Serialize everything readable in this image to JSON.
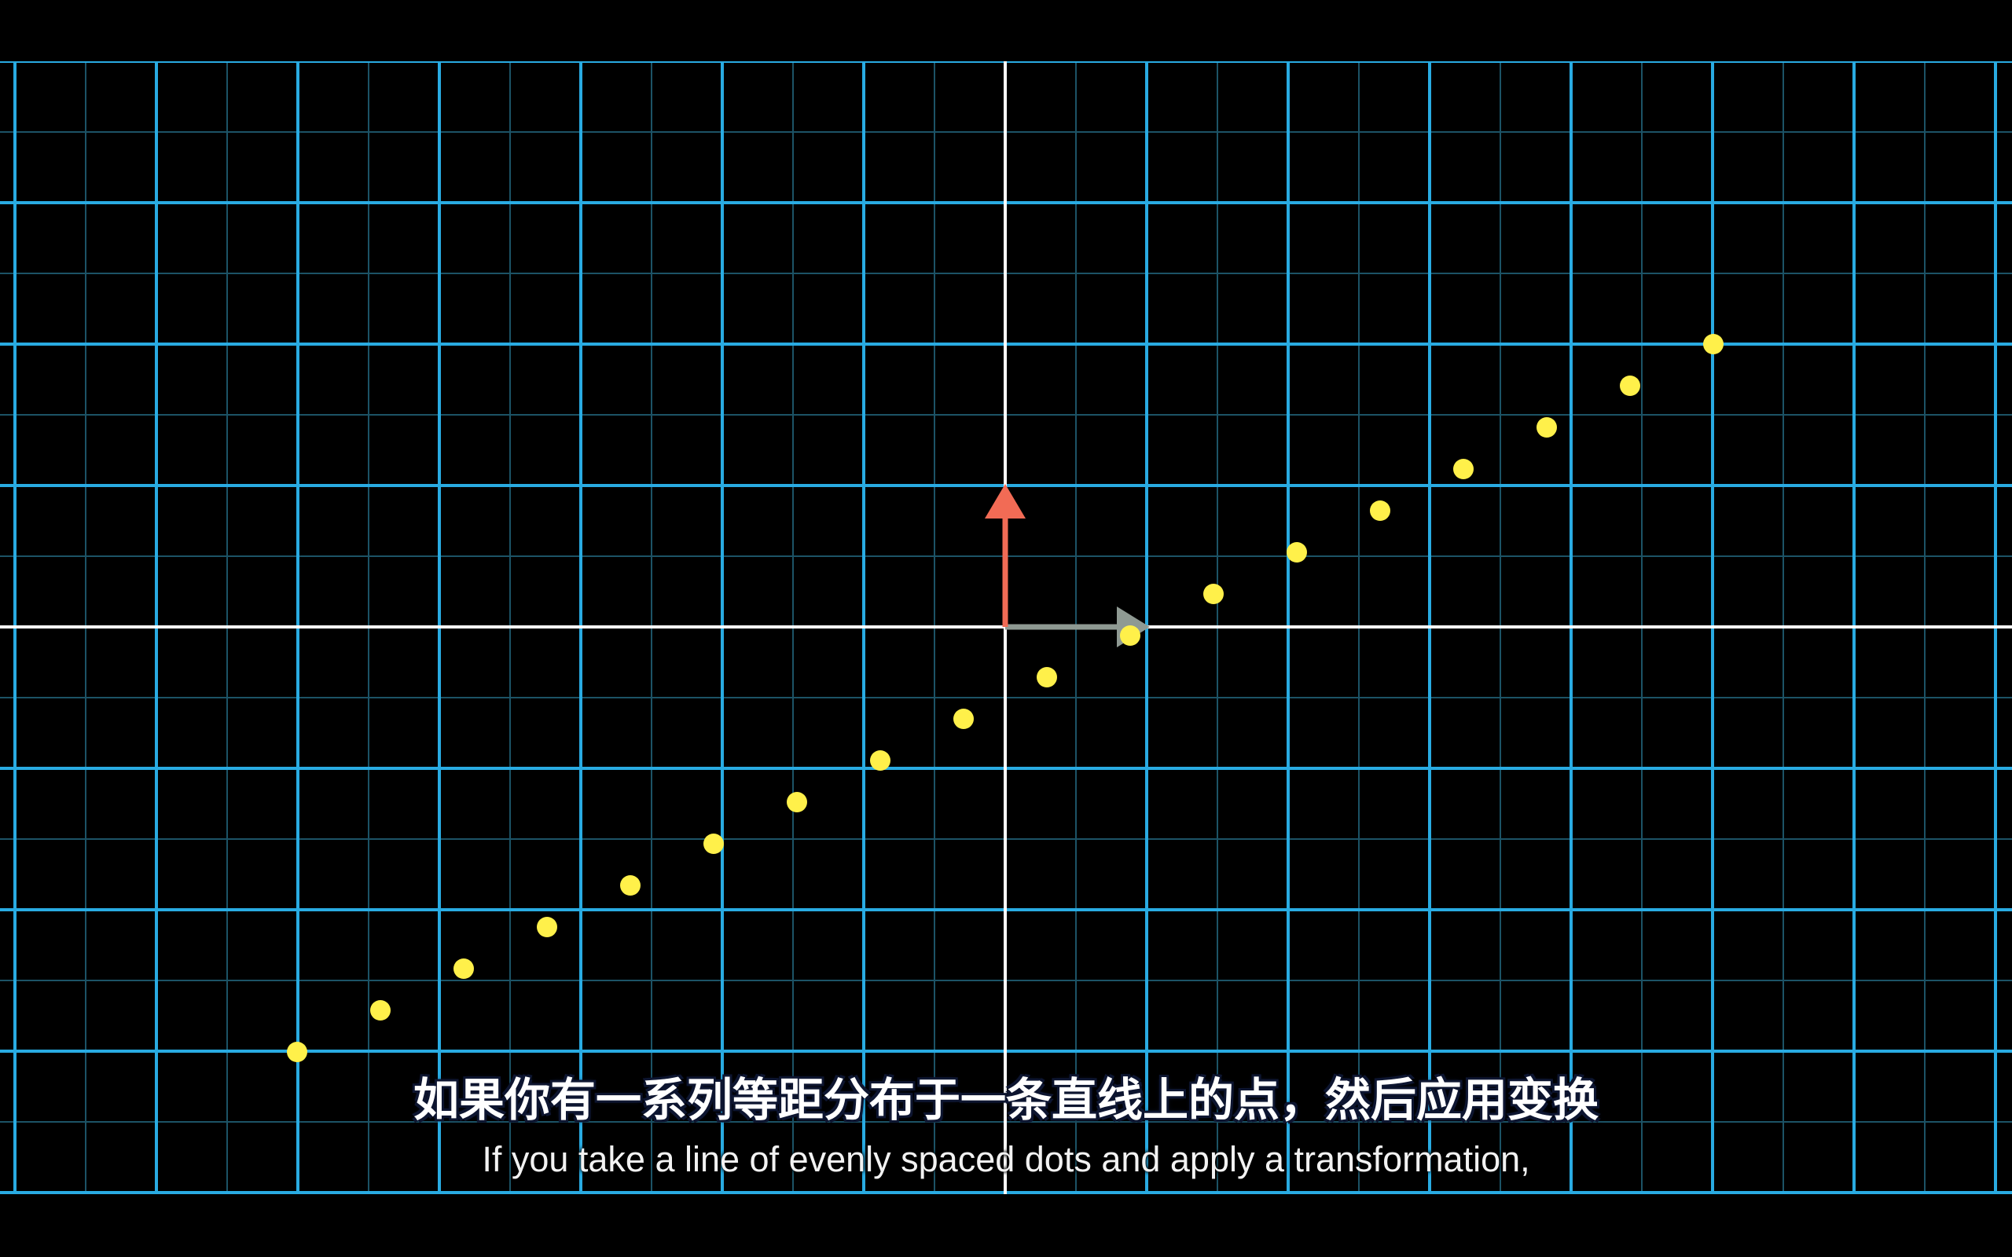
{
  "video": {
    "colors": {
      "background": "#000000",
      "grid_major": "#29abe2",
      "grid_minor": "#1c5366",
      "axis": "#ffffff",
      "basis_i": "#8f9a93",
      "basis_j": "#f26b55",
      "dots": "#fff04a"
    },
    "dots": {
      "count": 18
    }
  },
  "subtitles": {
    "zh": "如果你有一系列等距分布于一条直线上的点，然后应用变换",
    "en": "If you take a line of evenly spaced dots and apply a transformation,"
  }
}
